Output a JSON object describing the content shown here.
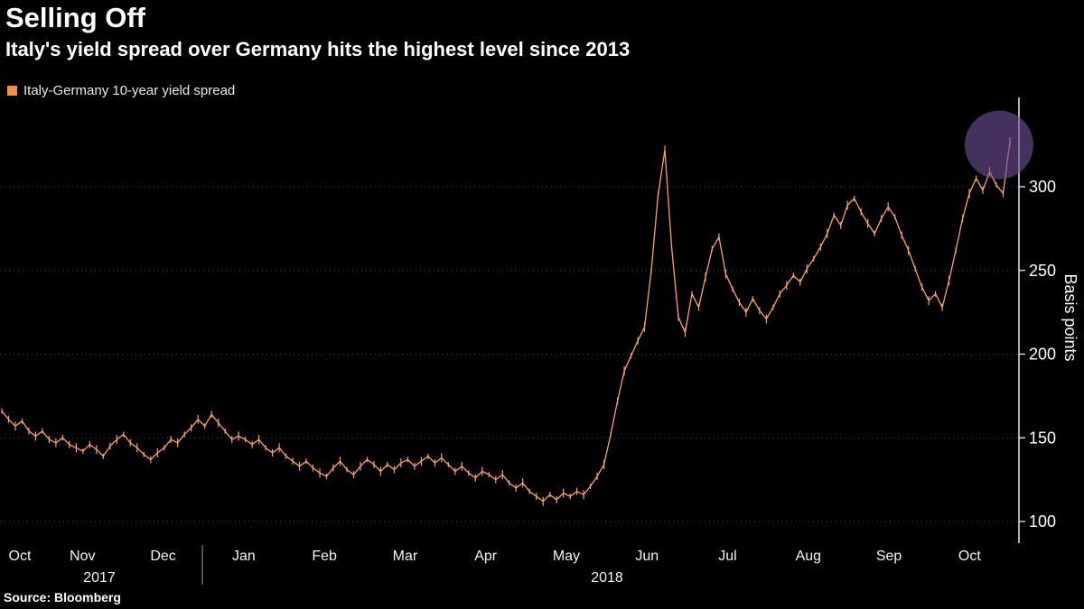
{
  "header": {
    "title": "Selling Off",
    "subtitle": "Italy's yield spread over Germany hits the highest level since 2013"
  },
  "legend": {
    "label": "Italy-Germany 10-year yield spread",
    "swatch_color": "#f78f3f"
  },
  "source": "Source: Bloomberg",
  "chart_data": {
    "type": "line",
    "title": "Selling Off",
    "subtitle": "Italy's yield spread over Germany hits the highest level since 2013",
    "unit": "basis points",
    "line_color": "#f9a263",
    "grid": true,
    "legend_position": "top-left",
    "x_axis": {
      "months": [
        "Oct",
        "Nov",
        "Dec",
        "Jan",
        "Feb",
        "Mar",
        "Apr",
        "May",
        "Jun",
        "Jul",
        "Aug",
        "Sep",
        "Oct"
      ],
      "years": [
        {
          "label": "2017",
          "x": 110
        },
        {
          "label": "2018",
          "x": 672
        }
      ],
      "span_months": 12.5
    },
    "y_axis": {
      "label": "Basis points",
      "ticks": [
        100,
        150,
        200,
        250,
        300
      ],
      "range": [
        95,
        340
      ]
    },
    "series": [
      {
        "name": "Italy-Germany 10-year yield spread",
        "values": [
          166,
          161,
          157,
          160,
          154,
          151,
          154,
          149,
          147,
          150,
          146,
          144,
          142,
          146,
          143,
          139,
          145,
          149,
          152,
          147,
          144,
          140,
          137,
          141,
          144,
          149,
          147,
          152,
          156,
          161,
          157,
          164,
          159,
          154,
          149,
          151,
          149,
          146,
          149,
          144,
          141,
          144,
          139,
          136,
          133,
          136,
          132,
          129,
          127,
          132,
          136,
          131,
          128,
          133,
          137,
          134,
          130,
          134,
          131,
          135,
          137,
          133,
          136,
          139,
          135,
          138,
          134,
          130,
          133,
          129,
          126,
          130,
          128,
          125,
          128,
          123,
          120,
          123,
          118,
          115,
          112,
          116,
          113,
          117,
          115,
          118,
          116,
          121,
          127,
          134,
          152,
          172,
          190,
          199,
          208,
          216,
          250,
          295,
          322,
          264,
          222,
          213,
          236,
          228,
          246,
          263,
          270,
          248,
          239,
          231,
          225,
          233,
          226,
          221,
          228,
          236,
          241,
          247,
          243,
          251,
          257,
          264,
          272,
          283,
          277,
          289,
          293,
          285,
          278,
          272,
          281,
          288,
          282,
          271,
          262,
          251,
          240,
          232,
          236,
          228,
          244,
          262,
          281,
          296,
          305,
          298,
          309,
          301,
          296,
          327
        ]
      }
    ],
    "highlight": {
      "type": "circle",
      "color": "#6e4f96",
      "around_value": 325
    }
  }
}
